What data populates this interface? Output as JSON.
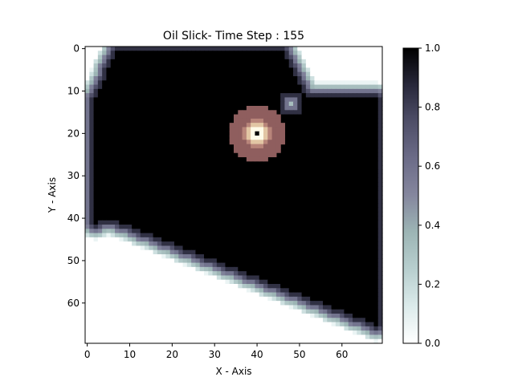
{
  "chart_data": {
    "type": "heatmap",
    "title": "Oil Slick- Time Step : 155",
    "xlabel": "X - Axis",
    "ylabel": "Y - Axis",
    "grid_size": [
      70,
      70
    ],
    "xlim": [
      -0.5,
      69.5
    ],
    "ylim": [
      69.5,
      -0.5
    ],
    "x_ticks": [
      "0",
      "10",
      "20",
      "30",
      "40",
      "50",
      "60"
    ],
    "y_ticks": [
      "0",
      "10",
      "20",
      "30",
      "40",
      "50",
      "60"
    ],
    "colormap": "bone_r",
    "colorbar": {
      "min": 0.0,
      "max": 1.0,
      "ticks": [
        "0.0",
        "0.2",
        "0.4",
        "0.6",
        "0.8",
        "1.0"
      ]
    },
    "slick_region": {
      "top_edge_row": 1,
      "left_column_range": [
        2,
        7
      ],
      "right_column": 68,
      "bottom_left": [
        5,
        40
      ],
      "bottom_right": [
        68,
        65
      ],
      "notch_near": [
        48,
        13
      ],
      "value_inside": 1.0
    },
    "source": {
      "center_x": 40,
      "center_y": 20,
      "radius": 6.5,
      "outer_color": "#8f5e5e",
      "inner_colors": [
        "#b8857a",
        "#e2c6a4",
        "#fffbe8"
      ],
      "center_color": "#000000"
    },
    "grid": false
  }
}
